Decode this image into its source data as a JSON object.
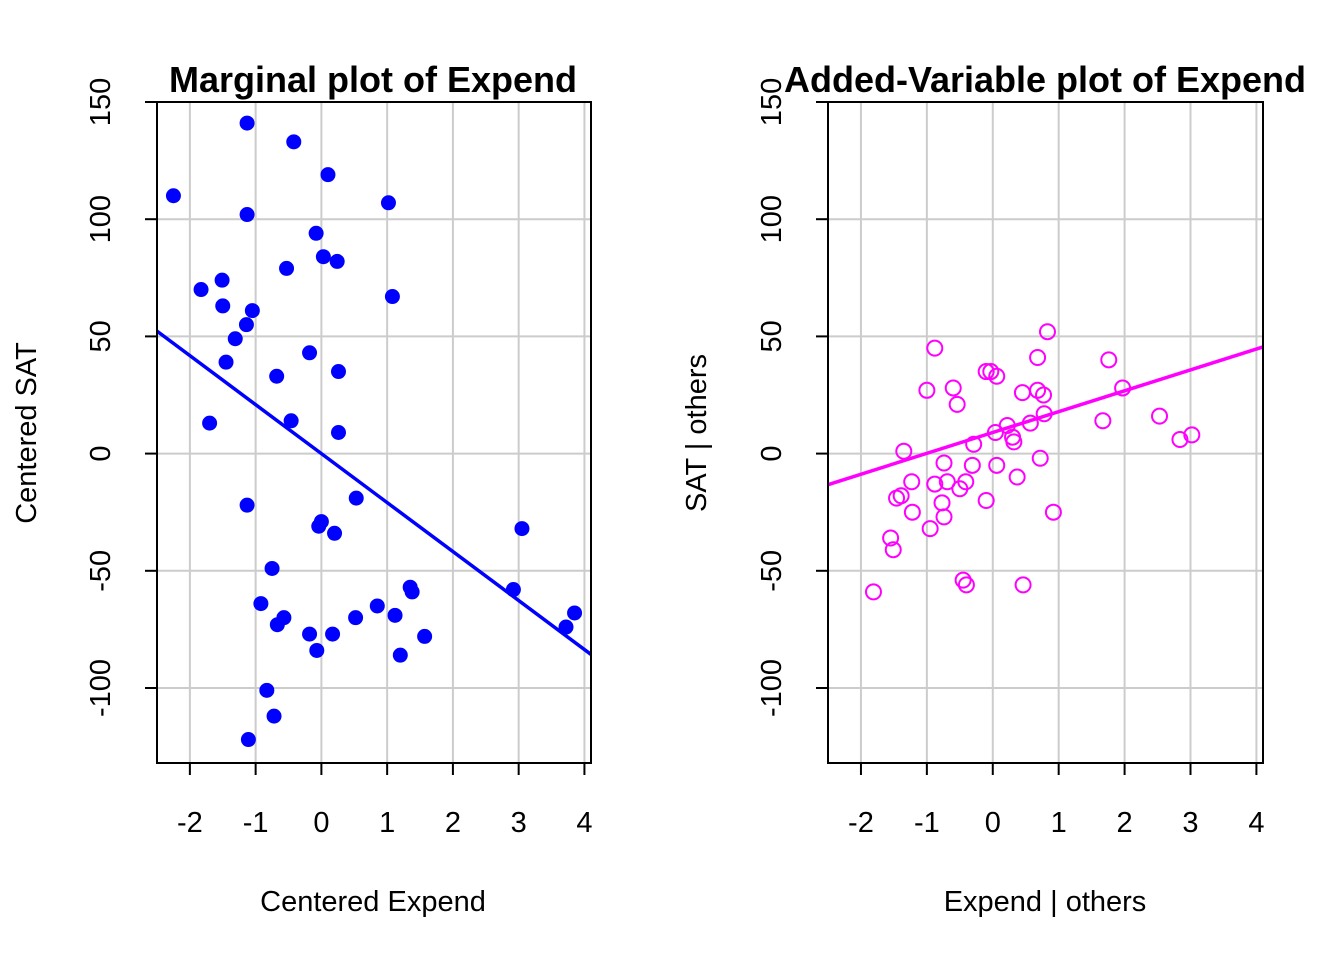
{
  "chart_data": [
    {
      "type": "scatter",
      "title": "Marginal plot of Expend",
      "xlabel": "Centered Expend",
      "ylabel": "Centered SAT",
      "xlim": [
        -2.5,
        4.1
      ],
      "ylim": [
        -132,
        150
      ],
      "xticks": [
        -2,
        -1,
        0,
        1,
        2,
        3,
        4
      ],
      "yticks": [
        -100,
        -50,
        0,
        50,
        100,
        150
      ],
      "grid": true,
      "point_style": "filled",
      "color": "#0000ff",
      "points": [
        [
          -2.25,
          110
        ],
        [
          -1.13,
          141
        ],
        [
          -0.42,
          133
        ],
        [
          0.1,
          119
        ],
        [
          1.02,
          107
        ],
        [
          -1.13,
          102
        ],
        [
          -0.08,
          94
        ],
        [
          0.03,
          84
        ],
        [
          0.24,
          82
        ],
        [
          -0.53,
          79
        ],
        [
          -1.51,
          74
        ],
        [
          -1.83,
          70
        ],
        [
          1.08,
          67
        ],
        [
          -1.5,
          63
        ],
        [
          -1.05,
          61
        ],
        [
          -1.14,
          55
        ],
        [
          -1.31,
          49
        ],
        [
          -0.18,
          43
        ],
        [
          -1.45,
          39
        ],
        [
          0.26,
          35
        ],
        [
          -0.68,
          33
        ],
        [
          -0.46,
          14
        ],
        [
          -1.7,
          13
        ],
        [
          0.26,
          9
        ],
        [
          0.53,
          -19
        ],
        [
          -1.13,
          -22
        ],
        [
          0.0,
          -29
        ],
        [
          -0.04,
          -31
        ],
        [
          0.2,
          -34
        ],
        [
          3.05,
          -32
        ],
        [
          -0.75,
          -49
        ],
        [
          2.92,
          -58
        ],
        [
          1.35,
          -57
        ],
        [
          1.38,
          -59
        ],
        [
          -0.92,
          -64
        ],
        [
          0.85,
          -65
        ],
        [
          1.12,
          -69
        ],
        [
          0.52,
          -70
        ],
        [
          -0.57,
          -70
        ],
        [
          -0.67,
          -73
        ],
        [
          3.85,
          -68
        ],
        [
          3.72,
          -74
        ],
        [
          -0.18,
          -77
        ],
        [
          0.17,
          -77
        ],
        [
          1.57,
          -78
        ],
        [
          -0.07,
          -84
        ],
        [
          1.2,
          -86
        ],
        [
          -0.83,
          -101
        ],
        [
          -0.72,
          -112
        ],
        [
          -1.11,
          -122
        ]
      ],
      "fit_line": {
        "intercept": 0,
        "slope": -20.9
      }
    },
    {
      "type": "scatter",
      "title": "Added-Variable plot of Expend",
      "xlabel": "Expend | others",
      "ylabel": "SAT  | others",
      "xlim": [
        -2.5,
        4.1
      ],
      "ylim": [
        -132,
        150
      ],
      "xticks": [
        -2,
        -1,
        0,
        1,
        2,
        3,
        4
      ],
      "yticks": [
        -100,
        -50,
        0,
        50,
        100,
        150
      ],
      "grid": true,
      "point_style": "open",
      "color": "#ff00ff",
      "points": [
        [
          0.83,
          52
        ],
        [
          -0.88,
          45
        ],
        [
          1.76,
          40
        ],
        [
          0.68,
          41
        ],
        [
          -0.1,
          35
        ],
        [
          -0.03,
          35
        ],
        [
          0.06,
          33
        ],
        [
          -0.6,
          28
        ],
        [
          1.97,
          28
        ],
        [
          -1.0,
          27
        ],
        [
          0.45,
          26
        ],
        [
          0.68,
          27
        ],
        [
          0.77,
          25
        ],
        [
          -0.54,
          21
        ],
        [
          0.78,
          17
        ],
        [
          2.53,
          16
        ],
        [
          1.67,
          14
        ],
        [
          0.57,
          13
        ],
        [
          0.22,
          12
        ],
        [
          0.04,
          9
        ],
        [
          0.3,
          7
        ],
        [
          3.02,
          8
        ],
        [
          0.32,
          5
        ],
        [
          2.84,
          6
        ],
        [
          -0.29,
          4
        ],
        [
          -1.35,
          1
        ],
        [
          -0.74,
          -4
        ],
        [
          0.72,
          -2
        ],
        [
          -0.31,
          -5
        ],
        [
          0.06,
          -5
        ],
        [
          0.37,
          -10
        ],
        [
          -0.41,
          -12
        ],
        [
          -0.69,
          -12
        ],
        [
          -1.23,
          -12
        ],
        [
          -0.88,
          -13
        ],
        [
          -0.5,
          -15
        ],
        [
          -1.39,
          -18
        ],
        [
          -1.46,
          -19
        ],
        [
          -0.1,
          -20
        ],
        [
          -0.77,
          -21
        ],
        [
          -1.22,
          -25
        ],
        [
          0.92,
          -25
        ],
        [
          -0.74,
          -27
        ],
        [
          -0.95,
          -32
        ],
        [
          -1.55,
          -36
        ],
        [
          -1.51,
          -41
        ],
        [
          -0.45,
          -54
        ],
        [
          -0.4,
          -56
        ],
        [
          0.46,
          -56
        ],
        [
          -1.81,
          -59
        ]
      ],
      "fit_line": {
        "intercept": 9,
        "slope": 8.9
      }
    }
  ]
}
